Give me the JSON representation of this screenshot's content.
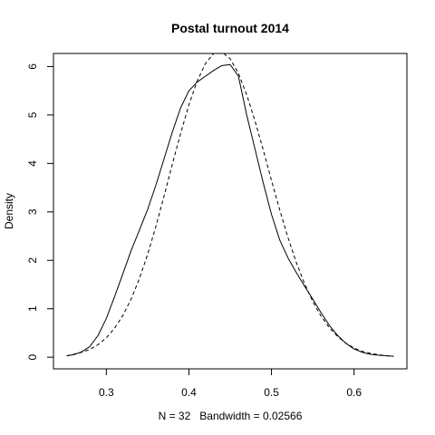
{
  "chart_data": {
    "type": "line",
    "title": "Postal turnout 2014",
    "xlabel": "N = 32   Bandwidth = 0.02566",
    "ylabel": "Density",
    "xlim": [
      0.236,
      0.664
    ],
    "ylim": [
      -0.24,
      6.27
    ],
    "grid": false,
    "legend": "none",
    "x_ticks": [
      {
        "value": 0.3,
        "label": "0.3"
      },
      {
        "value": 0.4,
        "label": "0.4"
      },
      {
        "value": 0.5,
        "label": "0.5"
      },
      {
        "value": 0.6,
        "label": "0.6"
      }
    ],
    "y_ticks": [
      {
        "value": 0,
        "label": "0"
      },
      {
        "value": 1,
        "label": "1"
      },
      {
        "value": 2,
        "label": "2"
      },
      {
        "value": 3,
        "label": "3"
      },
      {
        "value": 4,
        "label": "4"
      },
      {
        "value": 5,
        "label": "5"
      },
      {
        "value": 6,
        "label": "6"
      }
    ],
    "series": [
      {
        "style": "solid",
        "color": "#000000",
        "x": [
          0.252,
          0.26,
          0.27,
          0.28,
          0.29,
          0.3,
          0.31,
          0.32,
          0.33,
          0.34,
          0.35,
          0.36,
          0.37,
          0.38,
          0.39,
          0.4,
          0.41,
          0.42,
          0.43,
          0.44,
          0.45,
          0.46,
          0.47,
          0.48,
          0.49,
          0.5,
          0.51,
          0.52,
          0.53,
          0.54,
          0.55,
          0.56,
          0.57,
          0.58,
          0.59,
          0.6,
          0.61,
          0.62,
          0.63,
          0.64,
          0.648
        ],
        "y": [
          0.03,
          0.05,
          0.11,
          0.22,
          0.45,
          0.8,
          1.25,
          1.72,
          2.2,
          2.62,
          3.05,
          3.55,
          4.1,
          4.65,
          5.15,
          5.5,
          5.68,
          5.8,
          5.92,
          6.02,
          6.04,
          5.8,
          5.0,
          4.3,
          3.6,
          2.95,
          2.42,
          2.05,
          1.75,
          1.47,
          1.2,
          0.92,
          0.66,
          0.45,
          0.29,
          0.17,
          0.1,
          0.06,
          0.04,
          0.03,
          0.02
        ]
      },
      {
        "style": "dashed",
        "color": "#000000",
        "x": [
          0.252,
          0.26,
          0.27,
          0.28,
          0.29,
          0.3,
          0.31,
          0.32,
          0.33,
          0.34,
          0.35,
          0.36,
          0.37,
          0.38,
          0.39,
          0.4,
          0.41,
          0.42,
          0.43,
          0.44,
          0.45,
          0.46,
          0.47,
          0.48,
          0.49,
          0.5,
          0.51,
          0.52,
          0.53,
          0.54,
          0.55,
          0.56,
          0.57,
          0.58,
          0.59,
          0.6,
          0.61,
          0.62,
          0.63,
          0.64,
          0.648
        ],
        "y": [
          0.03,
          0.06,
          0.1,
          0.16,
          0.26,
          0.4,
          0.6,
          0.86,
          1.2,
          1.62,
          2.12,
          2.7,
          3.33,
          3.99,
          4.62,
          5.21,
          5.7,
          6.06,
          6.27,
          6.3,
          6.16,
          5.86,
          5.42,
          4.88,
          4.28,
          3.65,
          3.04,
          2.47,
          1.96,
          1.52,
          1.15,
          0.85,
          0.61,
          0.43,
          0.29,
          0.19,
          0.12,
          0.08,
          0.05,
          0.03,
          0.02
        ]
      }
    ]
  }
}
